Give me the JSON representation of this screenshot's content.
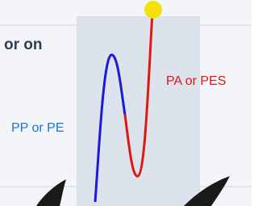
{
  "heading": "or on",
  "labels": {
    "upper": "PA or PES",
    "lower": "PP or PE"
  }
}
